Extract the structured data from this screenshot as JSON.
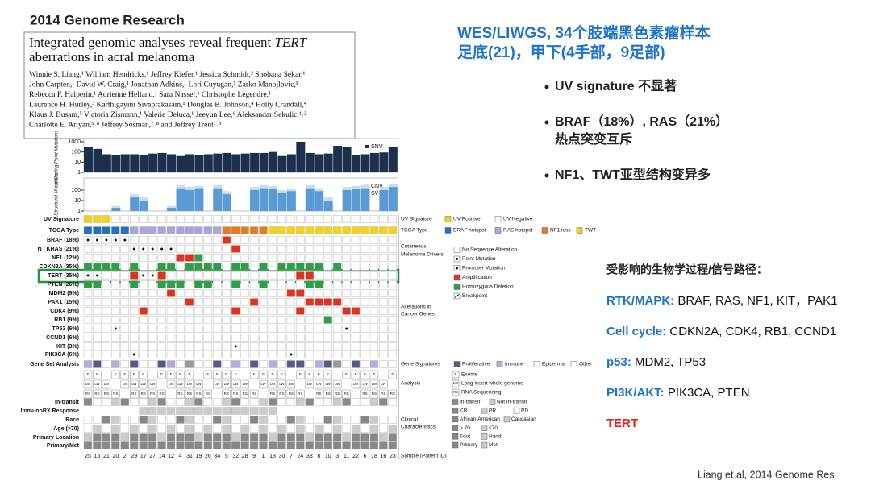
{
  "slide": {
    "heading": [
      "WES/LIWGS, 34个肢端黑色素瘤样本",
      "足底(21)，甲下(4手部，9足部)"
    ],
    "bullets": [
      [
        "UV signature 不显著"
      ],
      [
        "BRAF（18%）, RAS（21%）",
        "热点突变互斥"
      ],
      [
        "NF1、TWT亚型结构变异多"
      ]
    ],
    "pathway_title": "受影响的生物学过程/信号路径：",
    "pathways": [
      {
        "name": "RTK/MAPK:",
        "genes": " BRAF, RAS, NF1, KIT，PAK1"
      },
      {
        "name": "Cell cycle:",
        "genes": "  CDKN2A, CDK4, RB1, CCND1"
      },
      {
        "name": "p53:",
        "genes": " MDM2, TP53"
      },
      {
        "name": "PI3K/AKT:",
        "genes": " PIK3CA, PTEN"
      },
      {
        "name": "TERT",
        "genes": ""
      }
    ],
    "footer": "Liang et al, 2014 Genome Res"
  },
  "paper": {
    "journal": "2014 Genome Research",
    "title": [
      [
        "Integrated genomic analyses reveal frequent ",
        "TERT"
      ],
      [
        "aberrations in acral melanoma"
      ]
    ],
    "authors": [
      "Winnie S. Liang,¹ William Hendricks,¹ Jeffrey Kiefer,¹ Jessica Schmidt,² Shobana Sekar,¹",
      "John Carpten,¹ David W. Craig,¹ Jonathan Adkins,¹ Lori Cuyugan,¹ Zarko Manojlovic,¹",
      "Rebecca F. Halperin,¹ Adrienne Helland,¹ Sara Nasser,¹ Christophe Legendre,¹",
      "Laurence H. Hurley,³ Karthigayini Sivaprakasam,¹ Douglas B. Johnson,⁴ Holly Crandall,⁴",
      "Klaus J. Busam,⁵ Victoria Zismann,¹ Valerie Deluca,¹ Jeeyun Lee,⁶ Aleksandar Sekulic,¹˒²",
      "Charlotte E. Ariyan,⁵˒⁸ Jeffrey Sosman,⁷˒⁸ and Jeffrey Trent¹˒⁸"
    ]
  },
  "chart_data": [
    {
      "type": "bar",
      "ylabel": "# Coding Point Mutations",
      "log_scale": true,
      "ylim": [
        1,
        1000
      ],
      "yticks": [
        1,
        10,
        100,
        1000
      ],
      "series": [
        {
          "name": "SNV",
          "color": "#1c2f4d",
          "values": [
            300,
            200,
            60,
            50,
            60,
            60,
            50,
            70,
            80,
            60,
            40,
            60,
            50,
            60,
            70,
            80,
            60,
            70,
            80,
            80,
            100,
            40,
            60,
            1000,
            80,
            60,
            70,
            400,
            300,
            50,
            60,
            80,
            90,
            300
          ]
        }
      ]
    },
    {
      "type": "bar",
      "ylabel": "# Structural Mutations",
      "log_scale": true,
      "ylim": [
        1,
        700
      ],
      "yticks": [
        1,
        10,
        100
      ],
      "series": [
        {
          "name": "CNV",
          "color": "#c9ddf2",
          "values": [
            1,
            1,
            1,
            3,
            1,
            40,
            20,
            1,
            1,
            3,
            300,
            200,
            250,
            1,
            300,
            80,
            1,
            1,
            200,
            300,
            250,
            100,
            150,
            1,
            300,
            150,
            20,
            1,
            200,
            250,
            300,
            1,
            200,
            400
          ]
        },
        {
          "name": "SV",
          "color": "#5b9bd5",
          "values": [
            1,
            1,
            1,
            2,
            1,
            20,
            10,
            1,
            1,
            2,
            150,
            100,
            150,
            1,
            150,
            40,
            1,
            1,
            100,
            150,
            120,
            60,
            80,
            1,
            150,
            80,
            10,
            1,
            100,
            120,
            150,
            1,
            100,
            200
          ]
        }
      ]
    }
  ],
  "figure": {
    "rows": [
      "UV Signature",
      "TCGA Type",
      "BRAF (18%)",
      "N / KRAS (21%)",
      "NF1 (12%)",
      "CDKN2A (35%)",
      "TERT (35%)",
      "PTEN (26%)",
      "MDM2 (9%)",
      "PAK1 (15%)",
      "CDK4 (9%)",
      "RB1 (9%)",
      "TP53 (6%)",
      "CCND1 (6%)",
      "KIT (3%)",
      "PIK3CA (6%)",
      "Gene Set Analysis"
    ],
    "clinical_rows": [
      "In-transit",
      "ImmunoRX Response",
      "Race",
      "Age (>70)",
      "Primary Location",
      "Primary/Met"
    ],
    "analysis_codes": [
      "E",
      "LW",
      "RS"
    ],
    "samples": [
      "25",
      "15",
      "21",
      "20",
      "2",
      "29",
      "17",
      "27",
      "14",
      "12",
      "4",
      "31",
      "19",
      "26",
      "34",
      "5",
      "32",
      "28",
      "9",
      "1",
      "13",
      "30",
      "7",
      "24",
      "33",
      "8",
      "10",
      "3",
      "11",
      "22",
      "6",
      "18",
      "16",
      "23"
    ],
    "groups": {
      "uv": "UV Signature",
      "tcga": "TCGA Type",
      "drivers": [
        "Cutaneous",
        "Melanoma Drivers"
      ],
      "cancer": [
        "Alterations in",
        "Cancer Genes"
      ],
      "gene_sig": "Gene Signatures",
      "analysis": "Analysis",
      "clinical": [
        "Clinical",
        "Characteristics"
      ],
      "sample": "Sample (Patient ID)"
    },
    "legend": {
      "uv": [
        "UV Positive",
        "UV Negative"
      ],
      "tcga": [
        "BRAF hotspot",
        "RAS hotspot",
        "NF1 loss",
        "TWT"
      ],
      "alterations": [
        "No Sequence Alteration",
        "Point Mutation",
        "Promoter Mutation",
        "Amplification",
        "Homozygous Deletion",
        "Breakpoint"
      ],
      "gene_sig": [
        "Proliferative",
        "Immune",
        "Epidermal",
        "Other"
      ],
      "analysis": [
        "Exome",
        "Long-insert whole genome",
        "RNA Sequencing"
      ],
      "clinical": [
        [
          "In-transit",
          "Not In-transit"
        ],
        [
          "CR",
          "PR",
          "PD"
        ],
        [
          "African-American",
          "Caucasian"
        ],
        [
          "> 70",
          "<70"
        ],
        [
          "Foot",
          "Hand"
        ],
        [
          "Primary",
          "Met"
        ]
      ]
    }
  }
}
